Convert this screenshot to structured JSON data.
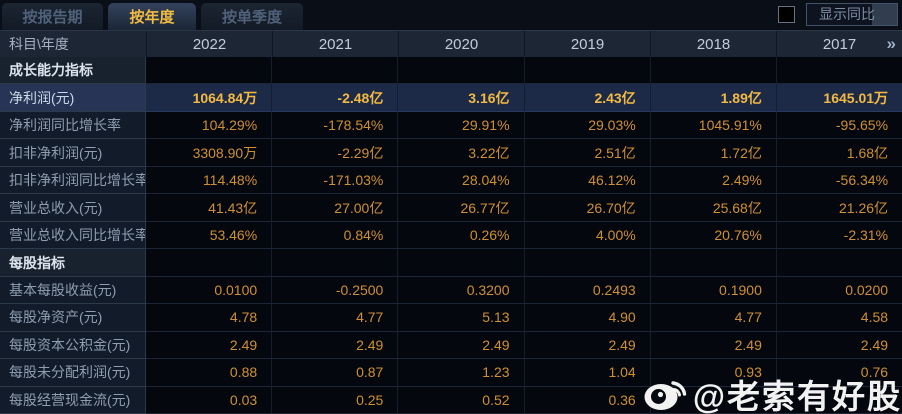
{
  "tabs": {
    "items": [
      {
        "label": "按报告期",
        "active": false
      },
      {
        "label": "按年度",
        "active": true
      },
      {
        "label": "按单季度",
        "active": false
      }
    ]
  },
  "controls": {
    "show_yoy_label": "显示同比",
    "checkbox_checked": false
  },
  "table": {
    "corner_label": "科目\\年度",
    "year_columns": [
      "2022",
      "2021",
      "2020",
      "2019",
      "2018",
      "2017"
    ],
    "more_icon": "»",
    "rows": [
      {
        "type": "section",
        "highlight": false,
        "label": "成长能力指标",
        "values": [
          "",
          "",
          "",
          "",
          "",
          ""
        ]
      },
      {
        "type": "data",
        "highlight": true,
        "label": "净利润(元)",
        "values": [
          "1064.84万",
          "-2.48亿",
          "3.16亿",
          "2.43亿",
          "1.89亿",
          "1645.01万"
        ]
      },
      {
        "type": "data",
        "highlight": false,
        "label": "净利润同比增长率",
        "values": [
          "104.29%",
          "-178.54%",
          "29.91%",
          "29.03%",
          "1045.91%",
          "-95.65%"
        ]
      },
      {
        "type": "data",
        "highlight": false,
        "label": "扣非净利润(元)",
        "values": [
          "3308.90万",
          "-2.29亿",
          "3.22亿",
          "2.51亿",
          "1.72亿",
          "1.68亿"
        ]
      },
      {
        "type": "data",
        "highlight": false,
        "label": "扣非净利润同比增长率",
        "values": [
          "114.48%",
          "-171.03%",
          "28.04%",
          "46.12%",
          "2.49%",
          "-56.34%"
        ]
      },
      {
        "type": "data",
        "highlight": false,
        "label": "营业总收入(元)",
        "values": [
          "41.43亿",
          "27.00亿",
          "26.77亿",
          "26.70亿",
          "25.68亿",
          "21.26亿"
        ]
      },
      {
        "type": "data",
        "highlight": false,
        "label": "营业总收入同比增长率",
        "values": [
          "53.46%",
          "0.84%",
          "0.26%",
          "4.00%",
          "20.76%",
          "-2.31%"
        ]
      },
      {
        "type": "section",
        "highlight": false,
        "label": "每股指标",
        "values": [
          "",
          "",
          "",
          "",
          "",
          ""
        ]
      },
      {
        "type": "data",
        "highlight": false,
        "label": "基本每股收益(元)",
        "values": [
          "0.0100",
          "-0.2500",
          "0.3200",
          "0.2493",
          "0.1900",
          "0.0200"
        ]
      },
      {
        "type": "data",
        "highlight": false,
        "label": "每股净资产(元)",
        "values": [
          "4.78",
          "4.77",
          "5.13",
          "4.90",
          "4.77",
          "4.58"
        ]
      },
      {
        "type": "data",
        "highlight": false,
        "label": "每股资本公积金(元)",
        "values": [
          "2.49",
          "2.49",
          "2.49",
          "2.49",
          "2.49",
          "2.49"
        ]
      },
      {
        "type": "data",
        "highlight": false,
        "label": "每股未分配利润(元)",
        "values": [
          "0.88",
          "0.87",
          "1.23",
          "1.04",
          "0.93",
          "0.76"
        ]
      },
      {
        "type": "data",
        "highlight": false,
        "label": "每股经营现金流(元)",
        "values": [
          "0.03",
          "0.25",
          "0.52",
          "0.36",
          "",
          ""
        ]
      }
    ]
  },
  "watermark": {
    "text": "@老索有好股"
  },
  "colors": {
    "accent_gold": "#f2bc41",
    "value_orange": "#d08f31",
    "highlight_row_bg": "#1d2a47",
    "header_bg": "#1c2634",
    "label_col_bg": "#121b29",
    "page_bg": "#060a10"
  }
}
